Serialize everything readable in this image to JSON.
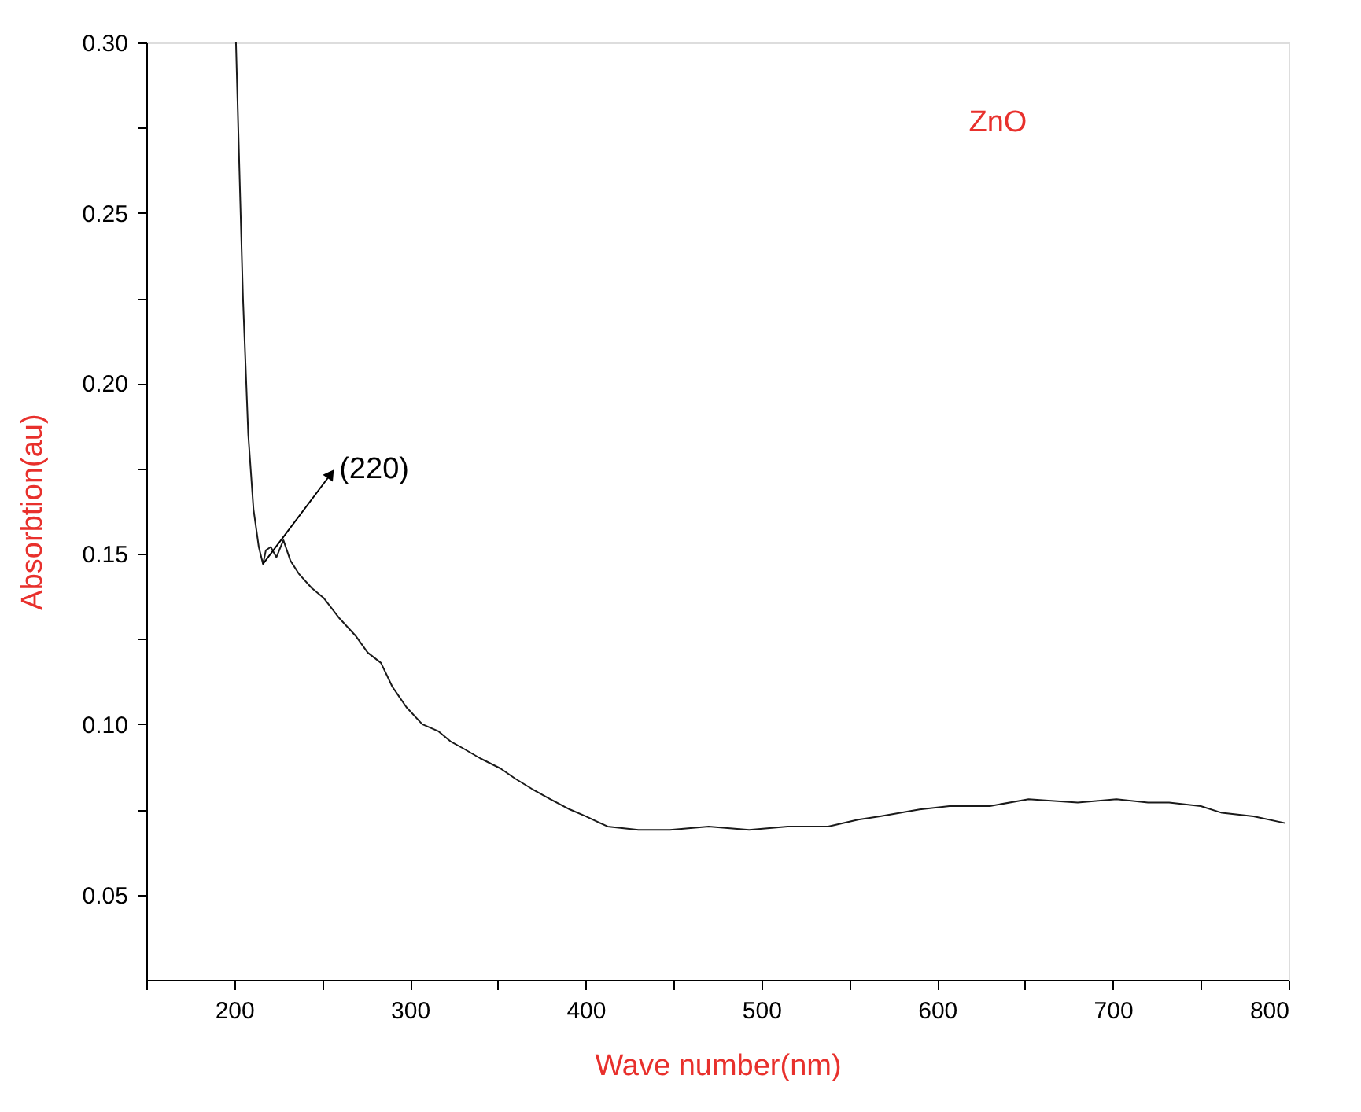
{
  "chart_data": {
    "type": "line",
    "xlabel": "Wave number(nm)",
    "ylabel": "Absorbtion(au)",
    "x": [
      201,
      203,
      205,
      208,
      211,
      214,
      216.4,
      218,
      220.8,
      224,
      228,
      232,
      237,
      244,
      251,
      260,
      269,
      276,
      283.5,
      290,
      298,
      307,
      316,
      323,
      330,
      340,
      351.6,
      360,
      369.5,
      380,
      391,
      400,
      412.5,
      430,
      448,
      470,
      493,
      515,
      538,
      555,
      567.5,
      590,
      607,
      630,
      652,
      680,
      702,
      720,
      732,
      750,
      762,
      780,
      798
    ],
    "series": [
      {
        "color": "#1a1a1a",
        "values": [
          0.3,
          0.262,
          0.225,
          0.185,
          0.163,
          0.152,
          0.147,
          0.151,
          0.152,
          0.149,
          0.154,
          0.148,
          0.144,
          0.14,
          0.137,
          0.131,
          0.126,
          0.121,
          0.118,
          0.111,
          0.105,
          0.1,
          0.098,
          0.095,
          0.093,
          0.09,
          0.087,
          0.084,
          0.081,
          0.078,
          0.075,
          0.073,
          0.07,
          0.069,
          0.069,
          0.07,
          0.069,
          0.07,
          0.07,
          0.072,
          0.073,
          0.075,
          0.076,
          0.076,
          0.078,
          0.077,
          0.078,
          0.077,
          0.077,
          0.076,
          0.074,
          0.073,
          0.071
        ]
      }
    ],
    "annotations": [
      {
        "text": "(220)",
        "x": 216.4,
        "y": 0.147
      },
      "ZnO"
    ],
    "xlim": [
      150,
      800
    ],
    "ylim": [
      0.025,
      0.3
    ],
    "xticks": [
      {
        "value": 150,
        "label": null
      },
      200,
      {
        "value": 250,
        "label": null
      },
      300,
      {
        "value": 350,
        "label": null
      },
      400,
      {
        "value": 450,
        "label": null
      },
      500,
      {
        "value": 550,
        "label": null
      },
      600,
      {
        "value": 650,
        "label": null
      },
      700,
      {
        "value": 750,
        "label": null
      },
      800
    ],
    "yticks": [
      {
        "value": 0.05,
        "label": "0.05"
      },
      {
        "value": 0.075,
        "label": null
      },
      {
        "value": 0.1,
        "label": "0.10"
      },
      {
        "value": 0.125,
        "label": null
      },
      {
        "value": 0.15,
        "label": "0.15"
      },
      {
        "value": 0.175,
        "label": null
      },
      {
        "value": 0.2,
        "label": "0.20"
      },
      {
        "value": 0.225,
        "label": null
      },
      {
        "value": 0.25,
        "label": "0.25"
      },
      {
        "value": 0.275,
        "label": null
      },
      {
        "value": 0.3,
        "label": "0.30"
      }
    ],
    "grid": false,
    "marker": "none",
    "line_style": "solid"
  }
}
